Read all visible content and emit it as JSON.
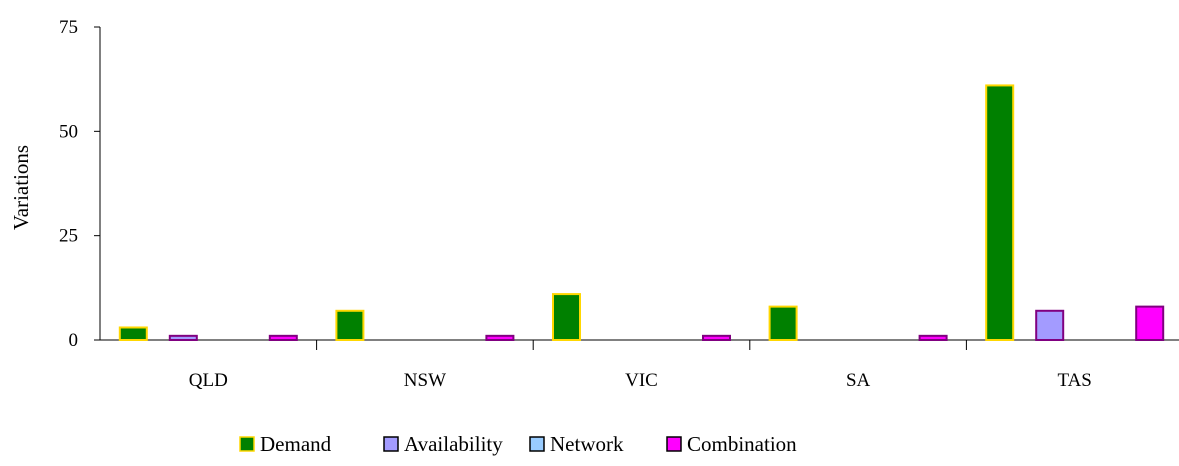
{
  "chart_data": {
    "type": "bar",
    "title": "",
    "xlabel": "",
    "ylabel": "Variations",
    "ylim": [
      0,
      75
    ],
    "yticks": [
      0,
      25,
      50,
      75
    ],
    "grid": false,
    "legend_position": "bottom",
    "categories": [
      "QLD",
      "NSW",
      "VIC",
      "SA",
      "TAS"
    ],
    "series": [
      {
        "name": "Demand",
        "color": "#008000",
        "border": "#FFD700",
        "values": [
          3,
          7,
          11,
          8,
          61
        ]
      },
      {
        "name": "Availability",
        "color": "#A39BFF",
        "border": "#800080",
        "values": [
          1,
          0,
          0,
          0,
          7
        ]
      },
      {
        "name": "Network",
        "color": "#99CCFF",
        "border": "#000080",
        "values": [
          0,
          0,
          0,
          0,
          0
        ]
      },
      {
        "name": "Combination",
        "color": "#FF00FF",
        "border": "#800080",
        "values": [
          1,
          1,
          1,
          1,
          8
        ]
      }
    ]
  }
}
